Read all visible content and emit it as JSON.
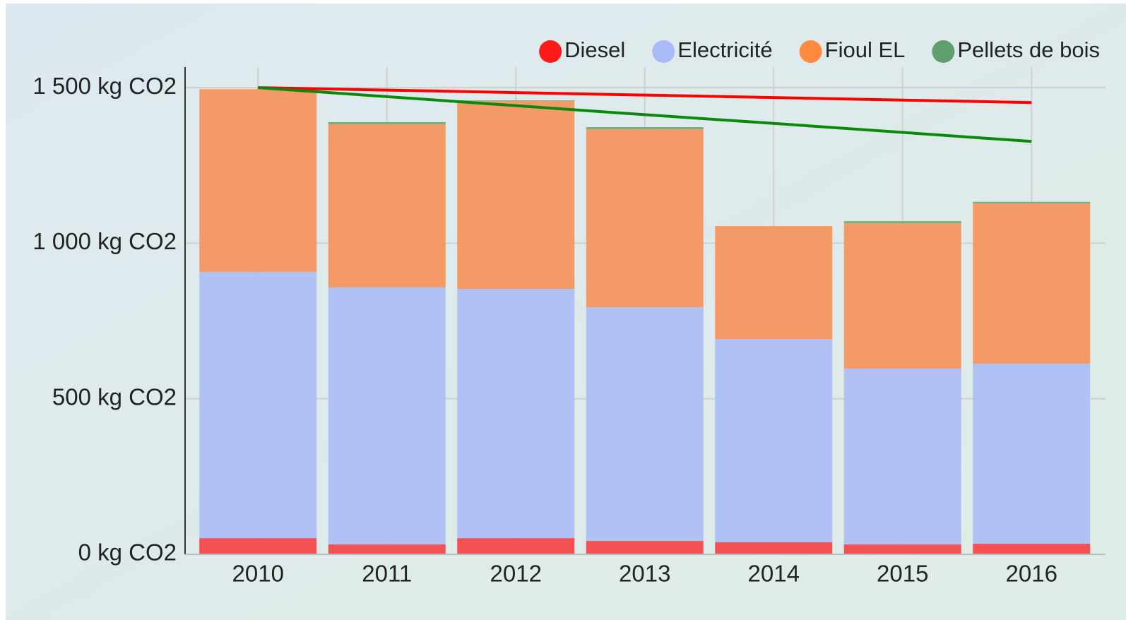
{
  "chart_data": {
    "type": "bar",
    "stacked": true,
    "categories": [
      "2010",
      "2011",
      "2012",
      "2013",
      "2014",
      "2015",
      "2016"
    ],
    "series": [
      {
        "name": "Diesel",
        "color": "#f44a4a",
        "legend_color": "#ff1a1a",
        "values": [
          52,
          32,
          52,
          43,
          39,
          32,
          34
        ]
      },
      {
        "name": "Electricité",
        "color": "#adbff7",
        "legend_color": "#a9bbf6",
        "values": [
          856,
          826,
          801,
          751,
          653,
          565,
          579
        ]
      },
      {
        "name": "Fioul EL",
        "color": "#f4965f",
        "legend_color": "#ff8a40",
        "values": [
          587,
          524,
          604,
          572,
          363,
          467,
          515
        ]
      },
      {
        "name": "Pellets de bois",
        "color": "#6fae7c",
        "legend_color": "#5f9f6e",
        "values": [
          0,
          7,
          2,
          7,
          0,
          7,
          5
        ]
      }
    ],
    "lines": [
      {
        "color": "#ff0000",
        "values": [
          1500,
          1492,
          1484,
          1476,
          1468,
          1460,
          1452
        ]
      },
      {
        "color": "#0a8a0a",
        "values": [
          1500,
          1471,
          1442,
          1413,
          1385,
          1356,
          1327
        ]
      }
    ],
    "ylim": [
      0,
      1566
    ],
    "yticks": [
      {
        "value": 0,
        "label": "0 kg CO2"
      },
      {
        "value": 500,
        "label": "500 kg CO2"
      },
      {
        "value": 1000,
        "label": "1 000 kg CO2"
      },
      {
        "value": 1500,
        "label": "1 500 kg CO2"
      }
    ],
    "grid": true,
    "legend": "top-right"
  }
}
